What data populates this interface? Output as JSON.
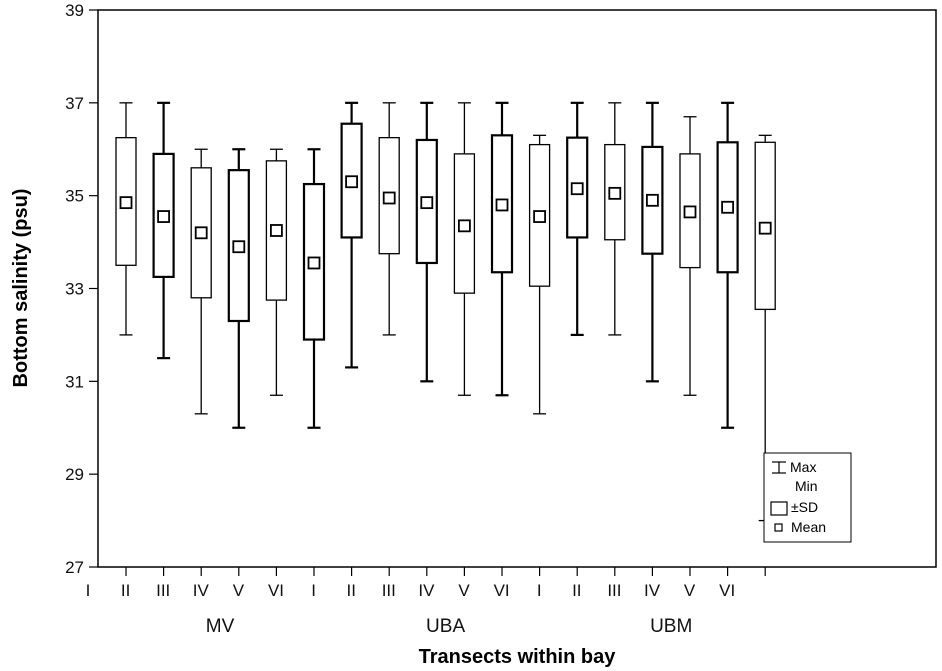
{
  "chart_data": {
    "type": "box",
    "xlabel": "Transects within bay",
    "ylabel": "Bottom salinity (psu)",
    "ylim": [
      27,
      39
    ],
    "yticks": [
      27,
      29,
      31,
      33,
      35,
      37,
      39
    ],
    "grid": false,
    "legend_position": "bottom-right",
    "legend": {
      "maxmin": "Max",
      "maxmin2": "Min",
      "sd": "±SD",
      "mean": "Mean"
    },
    "groups": [
      {
        "name": "MV",
        "categories": [
          "I",
          "II",
          "III",
          "IV",
          "V",
          "VI"
        ],
        "max": [
          37.0,
          37.0,
          36.0,
          36.0,
          36.0,
          36.0
        ],
        "min": [
          32.0,
          31.5,
          30.3,
          30.0,
          30.7,
          30.0
        ],
        "sd_high": [
          36.25,
          35.9,
          35.6,
          35.55,
          35.75,
          35.25
        ],
        "sd_low": [
          33.5,
          33.25,
          32.8,
          32.3,
          32.75,
          31.9
        ],
        "mean": [
          34.85,
          34.55,
          34.2,
          33.9,
          34.25,
          33.55
        ]
      },
      {
        "name": "UBA",
        "categories": [
          "I",
          "II",
          "III",
          "IV",
          "V",
          "VI"
        ],
        "max": [
          37.0,
          37.0,
          37.0,
          37.0,
          37.0,
          36.3
        ],
        "min": [
          31.3,
          32.0,
          31.0,
          30.7,
          30.7,
          30.3
        ],
        "sd_high": [
          36.55,
          36.25,
          36.2,
          35.9,
          36.3,
          36.1
        ],
        "sd_low": [
          34.1,
          33.75,
          33.55,
          32.9,
          33.35,
          33.05
        ],
        "mean": [
          35.3,
          34.95,
          34.85,
          34.35,
          34.8,
          34.55
        ]
      },
      {
        "name": "UBM",
        "categories": [
          "I",
          "II",
          "III",
          "IV",
          "V",
          "VI"
        ],
        "max": [
          37.0,
          37.0,
          37.0,
          36.7,
          37.0,
          36.3
        ],
        "min": [
          32.0,
          32.0,
          31.0,
          30.7,
          30.0,
          28.0
        ],
        "sd_high": [
          36.25,
          36.1,
          36.05,
          35.9,
          36.15,
          36.15
        ],
        "sd_low": [
          34.1,
          34.05,
          33.75,
          33.45,
          33.35,
          32.55
        ],
        "mean": [
          35.15,
          35.05,
          34.9,
          34.65,
          34.75,
          34.3
        ]
      }
    ]
  }
}
